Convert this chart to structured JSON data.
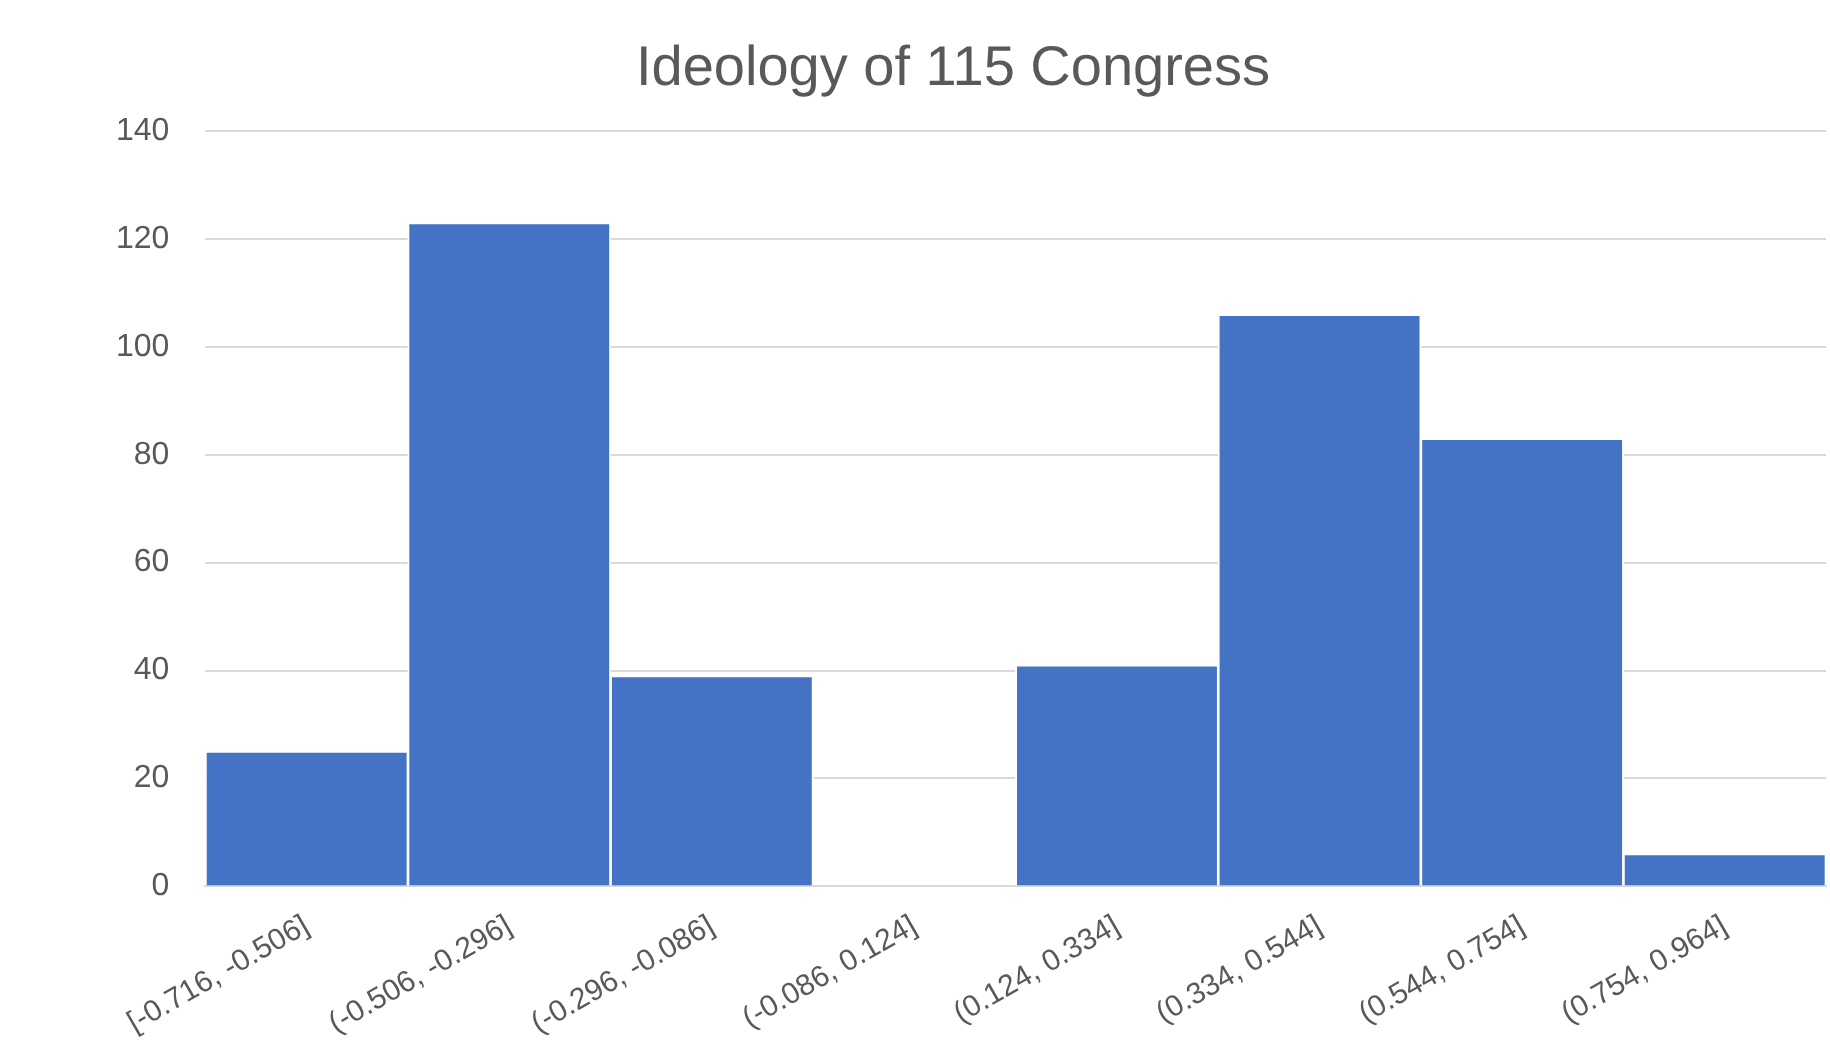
{
  "chart_data": {
    "type": "bar",
    "title": "Ideology of 115 Congress",
    "categories": [
      "[-0.716, -0.506]",
      "(-0.506, -0.296]",
      "(-0.296, -0.086]",
      "(-0.086, 0.124]",
      "(0.124, 0.334]",
      "(0.334, 0.544]",
      "(0.544, 0.754]",
      "(0.754, 0.964]"
    ],
    "values": [
      25,
      123,
      39,
      0,
      41,
      106,
      83,
      6
    ],
    "color": "#4472c4",
    "ylim": [
      0,
      140
    ],
    "yticks": [
      0,
      20,
      40,
      60,
      80,
      100,
      120,
      140
    ],
    "grid": "y",
    "legend": false
  }
}
